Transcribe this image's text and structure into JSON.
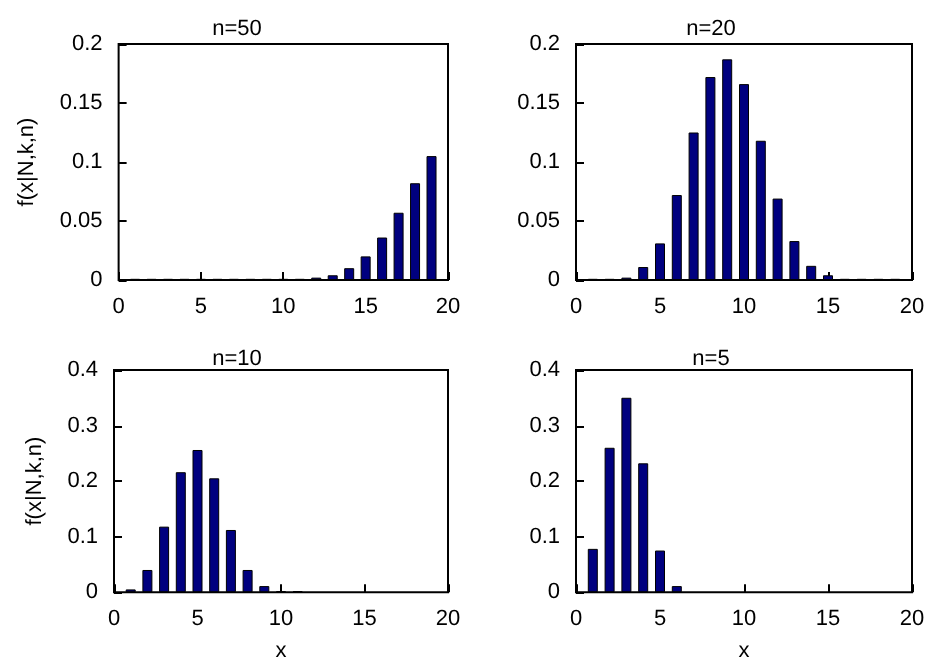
{
  "chart_data": [
    {
      "type": "bar",
      "title": "n=50",
      "ylabel": "f(x|N,k,n)",
      "x": [
        1,
        2,
        3,
        4,
        5,
        6,
        7,
        8,
        9,
        10,
        11,
        12,
        13,
        14,
        15,
        16,
        17,
        18,
        19
      ],
      "values": [
        0.001,
        0.001,
        0.001,
        0.001,
        0.001,
        0.001,
        0.001,
        0.001,
        0.001,
        0.001,
        0.001,
        0.002,
        0.004,
        0.01,
        0.02,
        0.036,
        0.057,
        0.082,
        0.105
      ],
      "color": "#00007f",
      "xlim": [
        0,
        20
      ],
      "xticks": [
        0,
        5,
        10,
        15,
        20
      ],
      "ylim": [
        0,
        0.2
      ],
      "yticks": [
        0,
        0.05,
        0.1,
        0.15,
        0.2
      ],
      "grid": false
    },
    {
      "type": "bar",
      "title": "n=20",
      "x": [
        1,
        2,
        3,
        4,
        5,
        6,
        7,
        8,
        9,
        10,
        11,
        12,
        13,
        14,
        15,
        16,
        17,
        18,
        19
      ],
      "values": [
        0.001,
        0.001,
        0.002,
        0.011,
        0.031,
        0.072,
        0.125,
        0.172,
        0.187,
        0.166,
        0.118,
        0.069,
        0.033,
        0.012,
        0.004,
        0.001,
        0.001,
        0.001,
        0.001
      ],
      "color": "#00007f",
      "xlim": [
        0,
        20
      ],
      "xticks": [
        0,
        5,
        10,
        15,
        20
      ],
      "ylim": [
        0,
        0.2
      ],
      "yticks": [
        0,
        0.05,
        0.1,
        0.15,
        0.2
      ],
      "grid": false
    },
    {
      "type": "bar",
      "title": "n=10",
      "xlabel": "x",
      "ylabel": "f(x|N,k,n)",
      "x": [
        1,
        2,
        3,
        4,
        5,
        6,
        7,
        8,
        9,
        10,
        11
      ],
      "values": [
        0.005,
        0.04,
        0.118,
        0.216,
        0.256,
        0.205,
        0.112,
        0.04,
        0.011,
        0.002,
        0.002
      ],
      "color": "#00007f",
      "xlim": [
        0,
        20
      ],
      "xticks": [
        0,
        5,
        10,
        15,
        20
      ],
      "ylim": [
        0,
        0.4
      ],
      "yticks": [
        0,
        0.1,
        0.2,
        0.3,
        0.4
      ],
      "grid": false
    },
    {
      "type": "bar",
      "title": "n=5",
      "xlabel": "x",
      "x": [
        1,
        2,
        3,
        4,
        5,
        6
      ],
      "values": [
        0.078,
        0.26,
        0.35,
        0.232,
        0.075,
        0.011
      ],
      "color": "#00007f",
      "xlim": [
        0,
        20
      ],
      "xticks": [
        0,
        5,
        10,
        15,
        20
      ],
      "ylim": [
        0,
        0.4
      ],
      "yticks": [
        0,
        0.1,
        0.2,
        0.3,
        0.4
      ],
      "grid": false
    }
  ]
}
